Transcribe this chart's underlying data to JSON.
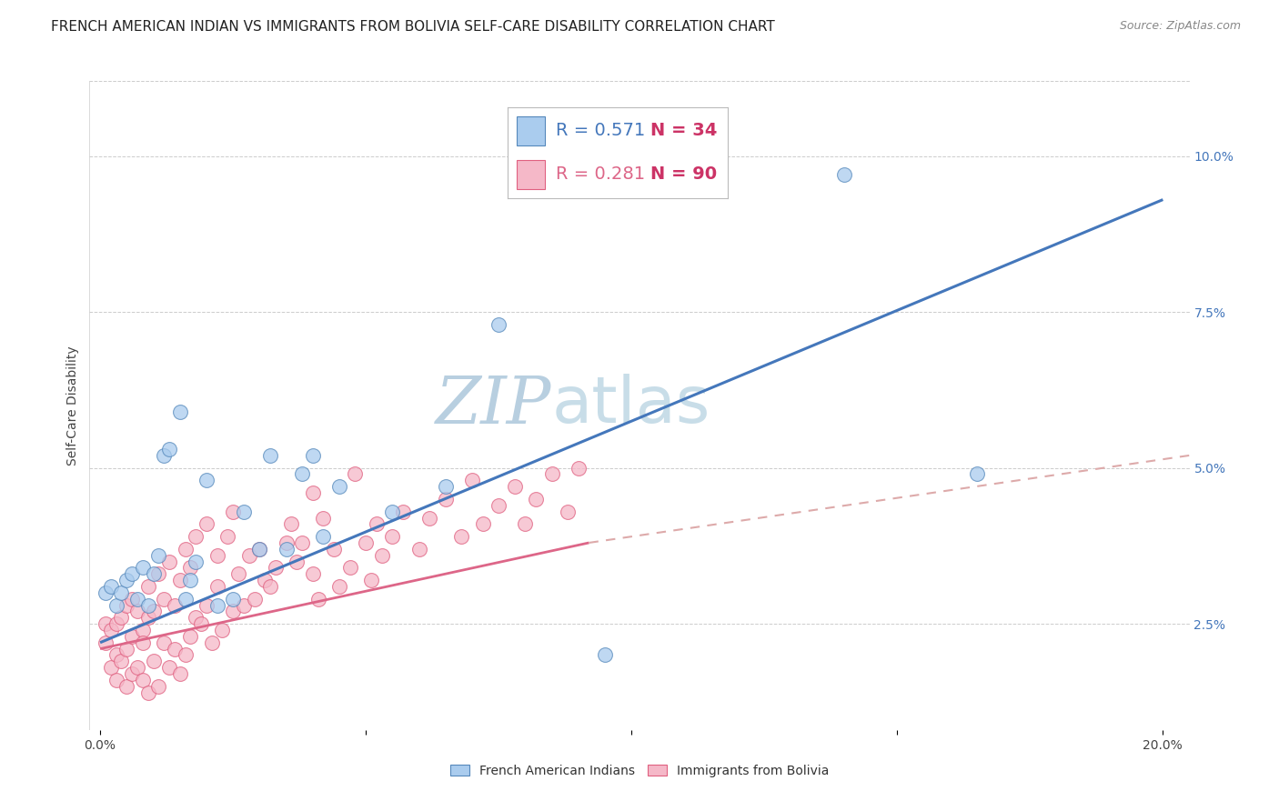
{
  "title": "FRENCH AMERICAN INDIAN VS IMMIGRANTS FROM BOLIVIA SELF-CARE DISABILITY CORRELATION CHART",
  "source": "Source: ZipAtlas.com",
  "ylabel": "Self-Care Disability",
  "x_ticks": [
    0.0,
    0.05,
    0.1,
    0.15,
    0.2
  ],
  "x_tick_labels_show": [
    "0.0%",
    "",
    "",
    "",
    "20.0%"
  ],
  "y_ticks_right": [
    0.025,
    0.05,
    0.075,
    0.1
  ],
  "y_tick_labels_right": [
    "2.5%",
    "5.0%",
    "7.5%",
    "10.0%"
  ],
  "xlim": [
    -0.002,
    0.205
  ],
  "ylim": [
    0.008,
    0.112
  ],
  "blue_label": "French American Indians",
  "pink_label": "Immigrants from Bolivia",
  "blue_color": "#aaccee",
  "pink_color": "#f5b8c8",
  "blue_edge_color": "#5588bb",
  "pink_edge_color": "#e06080",
  "blue_line_color": "#4477bb",
  "pink_line_color": "#dd6688",
  "pink_dash_color": "#ddaaaa",
  "watermark": "ZIPatlas",
  "watermark_color": "#d0dff0",
  "background_color": "#ffffff",
  "grid_color": "#cccccc",
  "title_fontsize": 11,
  "axis_label_fontsize": 10,
  "tick_fontsize": 10,
  "legend_fontsize": 14,
  "watermark_fontsize": 52,
  "blue_x": [
    0.001,
    0.002,
    0.003,
    0.004,
    0.005,
    0.006,
    0.007,
    0.008,
    0.009,
    0.01,
    0.011,
    0.012,
    0.013,
    0.015,
    0.016,
    0.017,
    0.018,
    0.02,
    0.022,
    0.025,
    0.027,
    0.03,
    0.032,
    0.035,
    0.038,
    0.04,
    0.042,
    0.045,
    0.055,
    0.065,
    0.075,
    0.095,
    0.14,
    0.165
  ],
  "blue_y": [
    0.03,
    0.031,
    0.028,
    0.03,
    0.032,
    0.033,
    0.029,
    0.034,
    0.028,
    0.033,
    0.036,
    0.052,
    0.053,
    0.059,
    0.029,
    0.032,
    0.035,
    0.048,
    0.028,
    0.029,
    0.043,
    0.037,
    0.052,
    0.037,
    0.049,
    0.052,
    0.039,
    0.047,
    0.043,
    0.047,
    0.073,
    0.02,
    0.097,
    0.049
  ],
  "pink_x": [
    0.001,
    0.001,
    0.002,
    0.002,
    0.003,
    0.003,
    0.003,
    0.004,
    0.004,
    0.005,
    0.005,
    0.005,
    0.006,
    0.006,
    0.006,
    0.007,
    0.007,
    0.008,
    0.008,
    0.008,
    0.009,
    0.009,
    0.009,
    0.01,
    0.01,
    0.011,
    0.011,
    0.012,
    0.012,
    0.013,
    0.013,
    0.014,
    0.014,
    0.015,
    0.015,
    0.016,
    0.016,
    0.017,
    0.017,
    0.018,
    0.018,
    0.019,
    0.02,
    0.02,
    0.021,
    0.022,
    0.022,
    0.023,
    0.024,
    0.025,
    0.025,
    0.026,
    0.027,
    0.028,
    0.029,
    0.03,
    0.031,
    0.032,
    0.033,
    0.035,
    0.036,
    0.037,
    0.038,
    0.04,
    0.04,
    0.041,
    0.042,
    0.044,
    0.045,
    0.047,
    0.048,
    0.05,
    0.051,
    0.052,
    0.053,
    0.055,
    0.057,
    0.06,
    0.062,
    0.065,
    0.068,
    0.07,
    0.072,
    0.075,
    0.078,
    0.08,
    0.082,
    0.085,
    0.088,
    0.09
  ],
  "pink_y": [
    0.022,
    0.025,
    0.018,
    0.024,
    0.016,
    0.02,
    0.025,
    0.019,
    0.026,
    0.015,
    0.021,
    0.028,
    0.017,
    0.023,
    0.029,
    0.018,
    0.027,
    0.016,
    0.024,
    0.022,
    0.014,
    0.026,
    0.031,
    0.019,
    0.027,
    0.015,
    0.033,
    0.022,
    0.029,
    0.018,
    0.035,
    0.021,
    0.028,
    0.017,
    0.032,
    0.02,
    0.037,
    0.023,
    0.034,
    0.026,
    0.039,
    0.025,
    0.028,
    0.041,
    0.022,
    0.031,
    0.036,
    0.024,
    0.039,
    0.027,
    0.043,
    0.033,
    0.028,
    0.036,
    0.029,
    0.037,
    0.032,
    0.031,
    0.034,
    0.038,
    0.041,
    0.035,
    0.038,
    0.033,
    0.046,
    0.029,
    0.042,
    0.037,
    0.031,
    0.034,
    0.049,
    0.038,
    0.032,
    0.041,
    0.036,
    0.039,
    0.043,
    0.037,
    0.042,
    0.045,
    0.039,
    0.048,
    0.041,
    0.044,
    0.047,
    0.041,
    0.045,
    0.049,
    0.043,
    0.05
  ],
  "blue_trend": [
    0.0,
    0.2,
    0.022,
    0.093
  ],
  "pink_trend": [
    0.0,
    0.2,
    0.02,
    0.053
  ],
  "pink_dash_trend": [
    0.0,
    0.2,
    0.02,
    0.053
  ]
}
